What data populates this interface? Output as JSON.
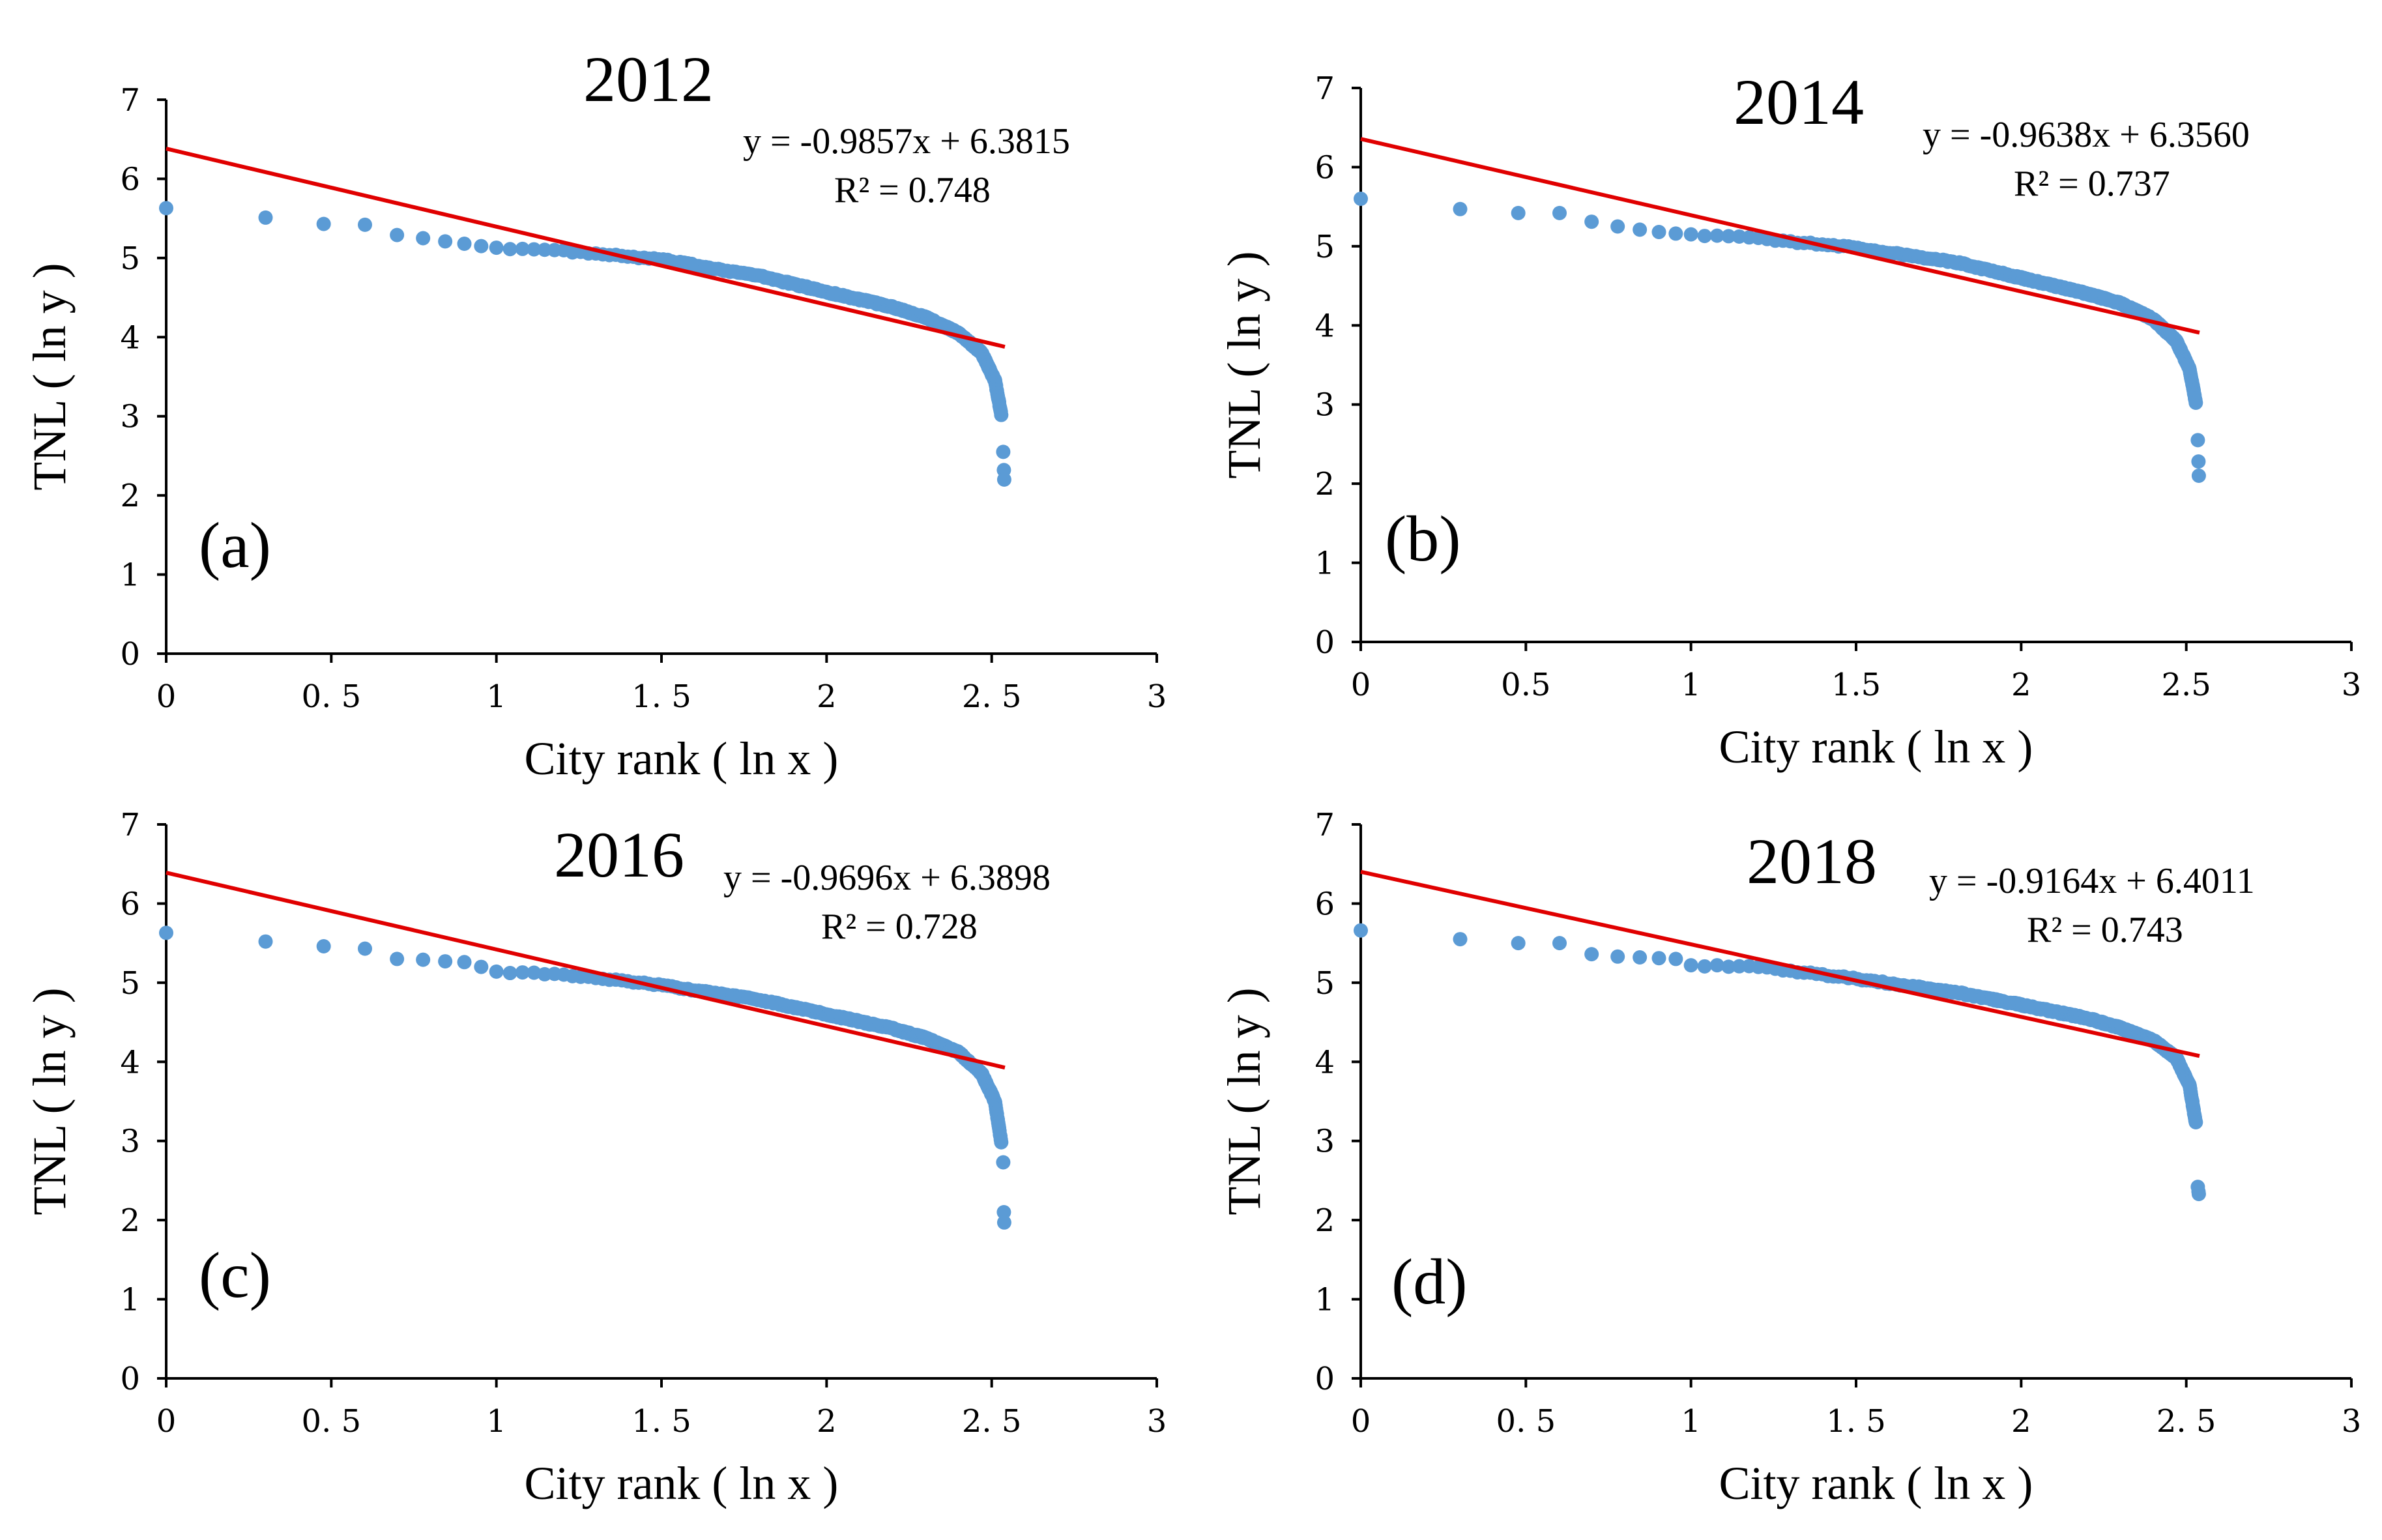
{
  "chart_data": [
    {
      "type": "scatter",
      "title": "2012",
      "panel": "(a)",
      "xlabel": "City rank ( ln x )",
      "ylabel": "TNL ( ln y )",
      "xlim": [
        0,
        3
      ],
      "ylim": [
        0,
        7
      ],
      "xticks": [
        "0",
        "0. 5",
        "1",
        "1. 5",
        "2",
        "2. 5",
        "3"
      ],
      "yticks": [
        "0",
        "1",
        "2",
        "3",
        "4",
        "5",
        "6",
        "7"
      ],
      "equation": "y = -0.9857x + 6.3815",
      "r2": "R² = 0.748",
      "trend": {
        "slope": -0.9857,
        "intercept": 6.3815,
        "x_range": [
          0,
          2.54
        ]
      },
      "profile": {
        "first": [
          [
            0,
            5.63
          ],
          [
            0.301,
            5.51
          ],
          [
            0.477,
            5.43
          ],
          [
            0.602,
            5.42
          ],
          [
            0.699,
            5.29
          ],
          [
            0.778,
            5.25
          ],
          [
            0.845,
            5.21
          ],
          [
            0.903,
            5.18
          ],
          [
            0.954,
            5.15
          ],
          [
            1.0,
            5.13
          ]
        ],
        "tail": [
          [
            1.2,
            5.09
          ],
          [
            1.5,
            4.98
          ],
          [
            1.8,
            4.77
          ],
          [
            2.0,
            4.57
          ],
          [
            2.2,
            4.38
          ],
          [
            2.3,
            4.25
          ],
          [
            2.4,
            4.05
          ],
          [
            2.47,
            3.8
          ],
          [
            2.51,
            3.45
          ],
          [
            2.53,
            3.0
          ]
        ],
        "outliers": [
          [
            2.535,
            2.55
          ],
          [
            2.537,
            2.32
          ],
          [
            2.538,
            2.2
          ]
        ]
      }
    },
    {
      "type": "scatter",
      "title": "2014",
      "panel": "(b)",
      "xlabel": "City rank ( ln x )",
      "ylabel": "TNL ( ln y )",
      "xlim": [
        0,
        3
      ],
      "ylim": [
        0,
        7
      ],
      "xticks": [
        "0",
        "0.5",
        "1",
        "1.5",
        "2",
        "2.5",
        "3"
      ],
      "yticks": [
        "0",
        "1",
        "2",
        "3",
        "4",
        "5",
        "6",
        "7"
      ],
      "equation": "y = -0.9638x + 6.3560",
      "r2": "R² = 0.737",
      "trend": {
        "slope": -0.9638,
        "intercept": 6.356,
        "x_range": [
          0,
          2.54
        ]
      },
      "profile": {
        "first": [
          [
            0,
            5.6
          ],
          [
            0.301,
            5.47
          ],
          [
            0.477,
            5.42
          ],
          [
            0.602,
            5.42
          ],
          [
            0.699,
            5.31
          ],
          [
            0.778,
            5.25
          ],
          [
            0.845,
            5.21
          ],
          [
            0.903,
            5.18
          ],
          [
            0.954,
            5.16
          ],
          [
            1.0,
            5.15
          ]
        ],
        "tail": [
          [
            1.2,
            5.1
          ],
          [
            1.5,
            4.98
          ],
          [
            1.8,
            4.8
          ],
          [
            2.0,
            4.6
          ],
          [
            2.2,
            4.4
          ],
          [
            2.3,
            4.28
          ],
          [
            2.4,
            4.08
          ],
          [
            2.47,
            3.8
          ],
          [
            2.51,
            3.45
          ],
          [
            2.53,
            3.0
          ]
        ],
        "outliers": [
          [
            2.535,
            2.55
          ],
          [
            2.537,
            2.28
          ],
          [
            2.538,
            2.1
          ]
        ]
      }
    },
    {
      "type": "scatter",
      "title": "2016",
      "panel": "(c)",
      "xlabel": "City rank ( ln x )",
      "ylabel": "TNL ( ln y )",
      "xlim": [
        0,
        3
      ],
      "ylim": [
        0,
        7
      ],
      "xticks": [
        "0",
        "0. 5",
        "1",
        "1. 5",
        "2",
        "2. 5",
        "3"
      ],
      "yticks": [
        "0",
        "1",
        "2",
        "3",
        "4",
        "5",
        "6",
        "7"
      ],
      "equation": "y = -0.9696x + 6.3898",
      "r2": "R² = 0.728",
      "trend": {
        "slope": -0.9696,
        "intercept": 6.3898,
        "x_range": [
          0,
          2.54
        ]
      },
      "profile": {
        "first": [
          [
            0,
            5.63
          ],
          [
            0.301,
            5.52
          ],
          [
            0.477,
            5.46
          ],
          [
            0.602,
            5.43
          ],
          [
            0.699,
            5.3
          ],
          [
            0.778,
            5.29
          ],
          [
            0.845,
            5.27
          ],
          [
            0.903,
            5.26
          ],
          [
            0.954,
            5.2
          ],
          [
            1.0,
            5.14
          ]
        ],
        "tail": [
          [
            1.2,
            5.1
          ],
          [
            1.5,
            4.97
          ],
          [
            1.8,
            4.78
          ],
          [
            2.0,
            4.6
          ],
          [
            2.2,
            4.42
          ],
          [
            2.3,
            4.3
          ],
          [
            2.4,
            4.12
          ],
          [
            2.47,
            3.85
          ],
          [
            2.51,
            3.5
          ],
          [
            2.53,
            2.95
          ]
        ],
        "outliers": [
          [
            2.535,
            2.73
          ],
          [
            2.537,
            2.1
          ],
          [
            2.538,
            1.97
          ]
        ]
      }
    },
    {
      "type": "scatter",
      "title": "2018",
      "panel": "(d)",
      "xlabel": "City rank ( ln x )",
      "ylabel": "TNL ( ln y )",
      "xlim": [
        0,
        3
      ],
      "ylim": [
        0,
        7
      ],
      "xticks": [
        "0",
        "0. 5",
        "1",
        "1. 5",
        "2",
        "2. 5",
        "3"
      ],
      "yticks": [
        "0",
        "1",
        "2",
        "3",
        "4",
        "5",
        "6",
        "7"
      ],
      "equation": "y = -0.9164x + 6.4011",
      "r2": "R² = 0.743",
      "trend": {
        "slope": -0.9164,
        "intercept": 6.4011,
        "x_range": [
          0,
          2.54
        ]
      },
      "profile": {
        "first": [
          [
            0,
            5.66
          ],
          [
            0.301,
            5.55
          ],
          [
            0.477,
            5.5
          ],
          [
            0.602,
            5.5
          ],
          [
            0.699,
            5.36
          ],
          [
            0.778,
            5.33
          ],
          [
            0.845,
            5.32
          ],
          [
            0.903,
            5.31
          ],
          [
            0.954,
            5.3
          ],
          [
            1.0,
            5.22
          ]
        ],
        "tail": [
          [
            1.2,
            5.2
          ],
          [
            1.5,
            5.05
          ],
          [
            1.8,
            4.88
          ],
          [
            2.0,
            4.72
          ],
          [
            2.2,
            4.55
          ],
          [
            2.3,
            4.43
          ],
          [
            2.4,
            4.27
          ],
          [
            2.47,
            4.05
          ],
          [
            2.51,
            3.7
          ],
          [
            2.53,
            3.2
          ]
        ],
        "outliers": [
          [
            2.535,
            2.42
          ],
          [
            2.537,
            2.36
          ],
          [
            2.538,
            2.33
          ]
        ]
      }
    }
  ]
}
